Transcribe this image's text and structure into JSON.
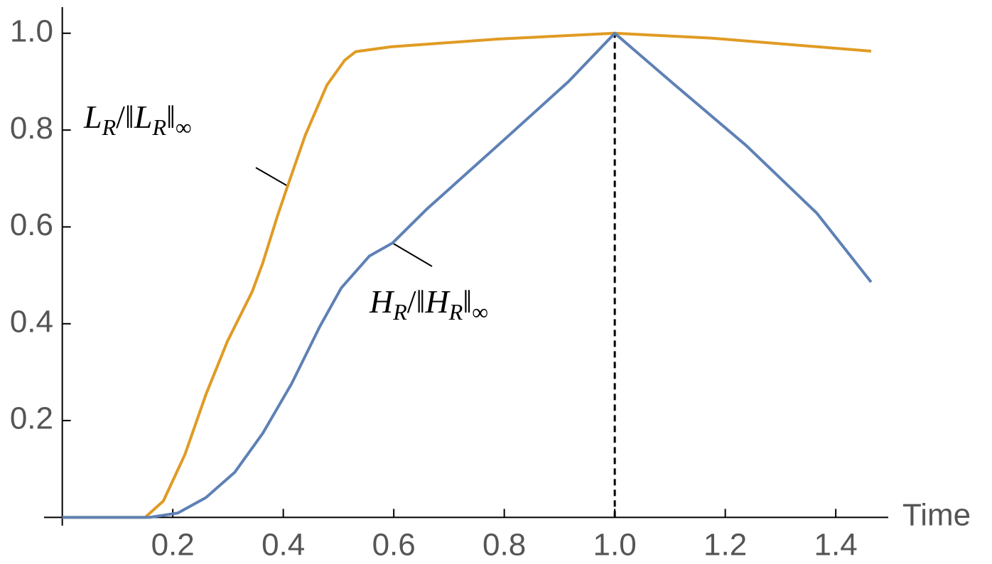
{
  "chart_data": {
    "type": "line",
    "x_label": "Time",
    "xlim": [
      -0.033,
      1.495
    ],
    "ylim": [
      -0.017,
      1.054
    ],
    "xticks": [
      0.2,
      0.4,
      0.6,
      0.8,
      {
        "value": 1,
        "label": "1.0"
      },
      1.2,
      1.4
    ],
    "yticks": [
      0.2,
      0.4,
      0.6,
      0.8,
      {
        "value": 1,
        "label": "1.0"
      }
    ],
    "vline": 1,
    "series": [
      {
        "color": "#e09b24",
        "x": [
          0,
          0.15,
          0.183,
          0.222,
          0.26,
          0.299,
          0.344,
          0.363,
          0.389,
          0.408,
          0.44,
          0.479,
          0.511,
          0.531,
          0.595,
          0.788,
          1.0,
          1.174,
          1.464
        ],
        "values": [
          0,
          0,
          0.034,
          0.13,
          0.254,
          0.364,
          0.467,
          0.526,
          0.621,
          0.685,
          0.79,
          0.893,
          0.944,
          0.962,
          0.972,
          0.988,
          1.0,
          0.99,
          0.963
        ]
      },
      {
        "color": "#5e81b5",
        "x": [
          0,
          0.158,
          0.209,
          0.26,
          0.312,
          0.363,
          0.415,
          0.466,
          0.505,
          0.556,
          0.598,
          0.659,
          0.788,
          0.916,
          1.0,
          1.109,
          1.238,
          1.366,
          1.464
        ],
        "values": [
          0,
          0,
          0.009,
          0.041,
          0.093,
          0.174,
          0.276,
          0.394,
          0.474,
          0.54,
          0.567,
          0.636,
          0.768,
          0.9,
          1.0,
          0.893,
          0.768,
          0.628,
          0.486
        ]
      }
    ],
    "annotations": [
      {
        "parts": [
          {
            "t": "L"
          },
          {
            "t": "R",
            "sub": true
          },
          {
            "t": "/‖"
          },
          {
            "t": "L"
          },
          {
            "t": "R",
            "sub": true
          },
          {
            "t": "‖"
          },
          {
            "t": "∞",
            "sub": true
          }
        ]
      },
      {
        "parts": [
          {
            "t": "H"
          },
          {
            "t": "R",
            "sub": true
          },
          {
            "t": "/‖"
          },
          {
            "t": "H"
          },
          {
            "t": "R",
            "sub": true
          },
          {
            "t": "‖"
          },
          {
            "t": "∞",
            "sub": true
          }
        ]
      }
    ]
  }
}
